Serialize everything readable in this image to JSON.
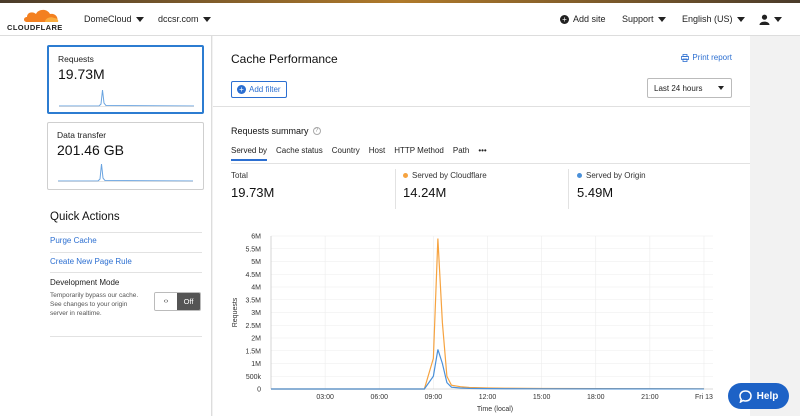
{
  "header": {
    "logo_text": "CLOUDFLARE",
    "account": "DomeCloud",
    "domain": "dccsr.com",
    "add_site": "Add site",
    "support": "Support",
    "language": "English (US)"
  },
  "sidebar": {
    "cards": [
      {
        "label": "Requests",
        "value": "19.73M"
      },
      {
        "label": "Data transfer",
        "value": "201.46 GB"
      }
    ],
    "quick_actions_title": "Quick Actions",
    "links": [
      "Purge Cache",
      "Create New Page Rule"
    ],
    "dev_mode": {
      "title": "Development Mode",
      "description": "Temporarily bypass our cache. See changes to your origin server in realtime.",
      "toggle_icon": "‹›",
      "toggle_state": "Off"
    }
  },
  "main": {
    "title": "Cache Performance",
    "print_label": "Print report",
    "add_filter_label": "Add filter",
    "time_range": "Last 24 hours",
    "summary_title": "Requests summary",
    "tabs": [
      "Served by",
      "Cache status",
      "Country",
      "Host",
      "HTTP Method",
      "Path",
      "•••"
    ],
    "stats": [
      {
        "label": "Total",
        "value": "19.73M"
      },
      {
        "label": "Served by Cloudflare",
        "value": "14.24M",
        "color": "#f6a340"
      },
      {
        "label": "Served by Origin",
        "value": "5.49M",
        "color": "#4a90d9"
      }
    ]
  },
  "help_label": "Help",
  "chart_data": {
    "type": "line",
    "ylabel": "Requests",
    "xlabel": "Time (local)",
    "yticks": [
      "0",
      "500k",
      "1M",
      "1.5M",
      "2M",
      "2.5M",
      "3M",
      "3.5M",
      "4M",
      "4.5M",
      "5M",
      "5.5M",
      "6M"
    ],
    "xticks": [
      "03:00",
      "06:00",
      "09:00",
      "12:00",
      "15:00",
      "18:00",
      "21:00",
      "Fri 13"
    ],
    "ylim": [
      0,
      6000000
    ],
    "x": [
      0,
      8.5,
      9.0,
      9.25,
      9.5,
      9.75,
      10.0,
      10.5,
      11.0,
      12.0,
      13.0,
      15.0,
      18.0,
      21.0,
      24.0
    ],
    "series": [
      {
        "name": "Served by Cloudflare",
        "color": "#f6a340",
        "values": [
          0,
          0,
          1200000,
          5900000,
          2600000,
          500000,
          150000,
          90000,
          60000,
          40000,
          30000,
          20000,
          15000,
          10000,
          5000
        ]
      },
      {
        "name": "Served by Origin",
        "color": "#4a90d9",
        "values": [
          0,
          0,
          500000,
          1550000,
          1000000,
          250000,
          70000,
          40000,
          25000,
          15000,
          10000,
          8000,
          6000,
          4000,
          2000
        ]
      }
    ]
  }
}
